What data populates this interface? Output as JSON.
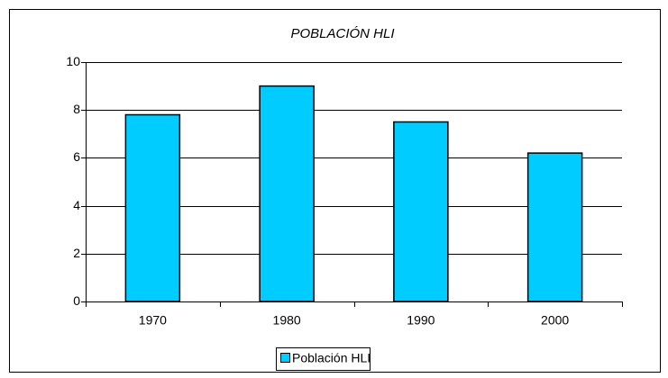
{
  "chart_data": {
    "type": "bar",
    "title": "POBLACIÓN HLI",
    "categories": [
      "1970",
      "1980",
      "1990",
      "2000"
    ],
    "series": [
      {
        "name": "Población HLI",
        "color": "#00ccff",
        "values": [
          7.8,
          9.0,
          7.5,
          6.2
        ]
      }
    ],
    "ylim": [
      0,
      10
    ],
    "yticks": [
      0,
      2,
      4,
      6,
      8,
      10
    ],
    "grid": true,
    "legend": "bottom"
  }
}
